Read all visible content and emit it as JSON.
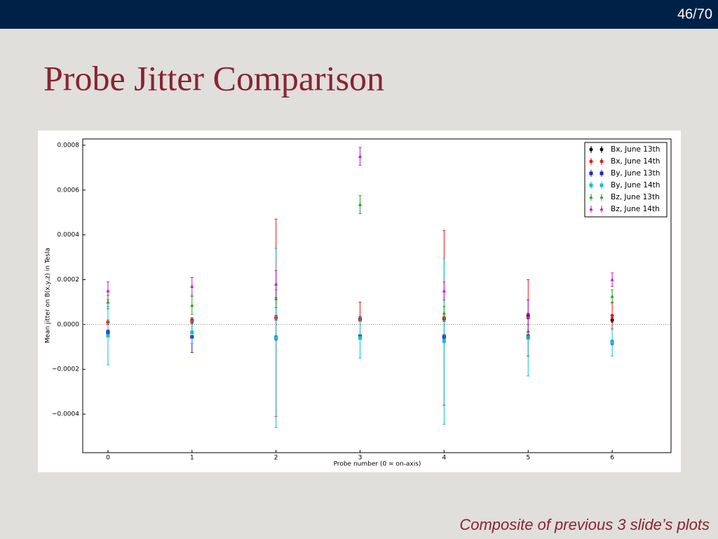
{
  "slide": {
    "page_number": "46/70",
    "title": "Probe Jitter Comparison",
    "caption": "Composite of previous 3 slide’s plots"
  },
  "chart_data": {
    "type": "errorbar",
    "x_label": "Probe number (0 = on-axis)",
    "y_label": "Mean jitter on B(x,y,z) in Tesla",
    "x": [
      0,
      1,
      2,
      3,
      4,
      5,
      6
    ],
    "xlim": [
      -0.3,
      6.7
    ],
    "xticks": [
      0,
      1,
      2,
      3,
      4,
      5,
      6
    ],
    "ylim": [
      -0.000572,
      0.000828
    ],
    "yticks": [
      {
        "value": -0.0004,
        "label": "−0.0004"
      },
      {
        "value": -0.0002,
        "label": "−0.0002"
      },
      {
        "value": 0,
        "label": "0.0000"
      },
      0.0002,
      0.0004,
      0.0006,
      0.0008
    ],
    "legend": "upper right",
    "series": [
      {
        "name": "Bx, June 13th",
        "color": "#000000",
        "marker": "circle",
        "values": [
          -3.5e-05,
          1.5e-05,
          3e-05,
          2.5e-05,
          2.5e-05,
          4e-05,
          2e-05
        ],
        "errors": [
          1e-05,
          1e-05,
          1e-05,
          1e-05,
          1e-05,
          1e-05,
          1e-05
        ]
      },
      {
        "name": "Bx, June 14th",
        "color": "#e41a1c",
        "marker": "circle",
        "values": [
          1e-05,
          2e-05,
          3e-05,
          2e-05,
          3e-05,
          3e-05,
          4e-05
        ],
        "errors": [
          1e-05,
          1e-05,
          0.00044,
          8e-05,
          0.00039,
          0.00017,
          6e-05
        ]
      },
      {
        "name": "By, June 13th",
        "color": "#1f1fd0",
        "marker": "square",
        "values": [
          -3.5e-05,
          -5.5e-05,
          -6e-05,
          -5.5e-05,
          -5.5e-05,
          -5.5e-05,
          -8e-05
        ],
        "errors": [
          1e-05,
          7e-05,
          1e-05,
          1e-05,
          1e-05,
          1e-05,
          1e-05
        ]
      },
      {
        "name": "By, June 14th",
        "color": "#17becf",
        "marker": "square",
        "values": [
          -5e-05,
          -3.5e-05,
          -6e-05,
          -6e-05,
          -7.5e-05,
          -6e-05,
          -8e-05
        ],
        "errors": [
          0.00013,
          5e-05,
          0.0004,
          9e-05,
          0.00037,
          0.00017,
          6e-05
        ]
      },
      {
        "name": "Bz, June 13th",
        "color": "#2ca02c",
        "marker": "triangle",
        "values": [
          0.0001,
          8.5e-05,
          0.000115,
          0.000535,
          5e-05,
          -3e-05,
          0.000125
        ],
        "errors": [
          3e-05,
          4e-05,
          4e-05,
          4e-05,
          3e-05,
          3e-05,
          3e-05
        ]
      },
      {
        "name": "Bz, June 14th",
        "color": "#c020c0",
        "marker": "triangle",
        "values": [
          0.00015,
          0.00017,
          0.00018,
          0.00075,
          0.00015,
          3e-05,
          0.0002
        ],
        "errors": [
          4e-05,
          4e-05,
          6e-05,
          4e-05,
          4e-05,
          8e-05,
          3e-05
        ]
      }
    ]
  }
}
